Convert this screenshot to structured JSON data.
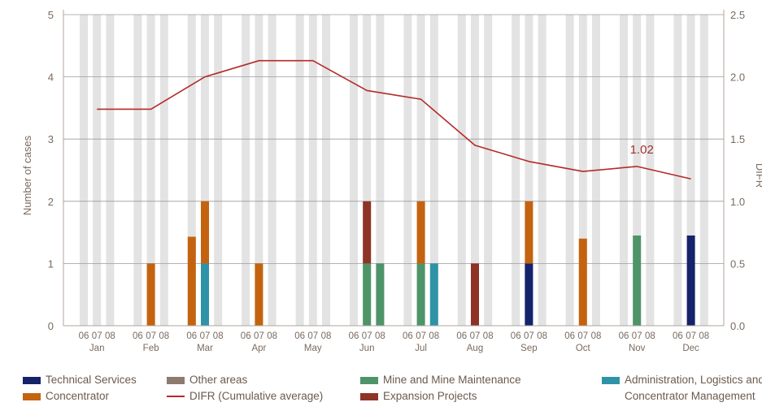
{
  "chart_data": {
    "type": "bar",
    "title": "",
    "ylabel": "Number of cases",
    "ylabel_right": "DIFR",
    "ylim": [
      0,
      5
    ],
    "ylim_right": [
      0,
      2.5
    ],
    "yticks": [
      0,
      1,
      2,
      3,
      4,
      5
    ],
    "yticks_right": [
      "0.0",
      "0.5",
      "1.0",
      "1.5",
      "2.0",
      "2.5"
    ],
    "months": [
      "Jan",
      "Feb",
      "Mar",
      "Apr",
      "May",
      "Jun",
      "Jul",
      "Aug",
      "Sep",
      "Oct",
      "Nov",
      "Dec"
    ],
    "years": [
      "06",
      "07",
      "08"
    ],
    "series": [
      {
        "name": "Technical Services",
        "color": "#15236b",
        "values": [
          [
            0,
            0,
            0
          ],
          [
            0,
            0,
            0
          ],
          [
            0,
            0,
            0
          ],
          [
            0,
            0,
            0
          ],
          [
            0,
            0,
            0
          ],
          [
            0,
            0,
            0
          ],
          [
            0,
            0,
            0
          ],
          [
            0,
            0,
            0
          ],
          [
            0,
            1,
            0
          ],
          [
            0,
            0,
            0
          ],
          [
            0,
            0,
            0
          ],
          [
            0,
            1.45,
            0
          ]
        ]
      },
      {
        "name": "Other areas",
        "color": "#8c7b6e",
        "values": [
          [
            0,
            0,
            0
          ],
          [
            0,
            0,
            0
          ],
          [
            0,
            0,
            0
          ],
          [
            0,
            0,
            0
          ],
          [
            0,
            0,
            0
          ],
          [
            0,
            0,
            0
          ],
          [
            0,
            0,
            0
          ],
          [
            0,
            0,
            0
          ],
          [
            0,
            0,
            0
          ],
          [
            0,
            0,
            0
          ],
          [
            0,
            0,
            0
          ],
          [
            0,
            0,
            0
          ]
        ]
      },
      {
        "name": "Mine and Mine Maintenance",
        "color": "#4e9468",
        "values": [
          [
            0,
            0,
            0
          ],
          [
            0,
            0,
            0
          ],
          [
            0,
            0,
            0
          ],
          [
            0,
            0,
            0
          ],
          [
            0,
            0,
            0
          ],
          [
            0,
            1,
            1
          ],
          [
            0,
            1,
            0
          ],
          [
            0,
            0,
            0
          ],
          [
            0,
            0,
            0
          ],
          [
            0,
            0,
            0
          ],
          [
            0,
            1.45,
            0
          ],
          [
            0,
            0,
            0
          ]
        ]
      },
      {
        "name": "Administration, Logistics and Concentrator Management",
        "color": "#2f93a8",
        "values": [
          [
            0,
            0,
            0
          ],
          [
            0,
            0,
            0
          ],
          [
            0,
            1,
            0
          ],
          [
            0,
            0,
            0
          ],
          [
            0,
            0,
            0
          ],
          [
            0,
            0,
            0
          ],
          [
            0,
            0,
            1
          ],
          [
            0,
            0,
            0
          ],
          [
            0,
            0,
            0
          ],
          [
            0,
            0,
            0
          ],
          [
            0,
            0,
            0
          ],
          [
            0,
            0,
            0
          ]
        ]
      },
      {
        "name": "Concentrator",
        "color": "#c4630f",
        "values": [
          [
            0,
            0,
            0
          ],
          [
            0,
            1,
            0
          ],
          [
            1.43,
            1,
            0
          ],
          [
            0,
            1,
            0
          ],
          [
            0,
            0,
            0
          ],
          [
            0,
            0,
            0
          ],
          [
            0,
            1,
            0
          ],
          [
            0,
            0,
            0
          ],
          [
            0,
            1,
            0
          ],
          [
            0,
            1.4,
            0
          ],
          [
            0,
            0,
            0
          ],
          [
            0,
            0,
            0
          ]
        ]
      },
      {
        "name": "Expansion Projects",
        "color": "#8e3326",
        "values": [
          [
            0,
            0,
            0
          ],
          [
            0,
            0,
            0
          ],
          [
            0,
            0,
            0
          ],
          [
            0,
            0,
            0
          ],
          [
            0,
            0,
            0
          ],
          [
            0,
            1,
            0
          ],
          [
            0,
            0,
            0
          ],
          [
            0,
            1,
            0
          ],
          [
            0,
            0,
            0
          ],
          [
            0,
            0,
            0
          ],
          [
            0,
            0,
            0
          ],
          [
            0,
            0,
            0
          ]
        ]
      }
    ],
    "line": {
      "name": "DIFR (Cumulative average)",
      "color": "#b52a2a",
      "values": [
        1.74,
        1.74,
        2.0,
        2.13,
        2.13,
        1.89,
        1.82,
        1.45,
        1.32,
        1.24,
        1.28,
        1.18
      ]
    },
    "annotation": {
      "text": "1.02",
      "month": "Nov"
    },
    "legend_position": "bottom",
    "grid": true
  },
  "legend": {
    "technical_services": "Technical Services",
    "other_areas": "Other areas",
    "mine": "Mine and Mine Maintenance",
    "admin_line1": "Administration, Logistics and",
    "admin_line2": "Concentrator Management",
    "concentrator": "Concentrator",
    "difr": "DIFR (Cumulative average)",
    "expansion": "Expansion Projects"
  },
  "colors": {
    "background_stripe": "#e3e3e3",
    "axis": "#b0a59c"
  }
}
